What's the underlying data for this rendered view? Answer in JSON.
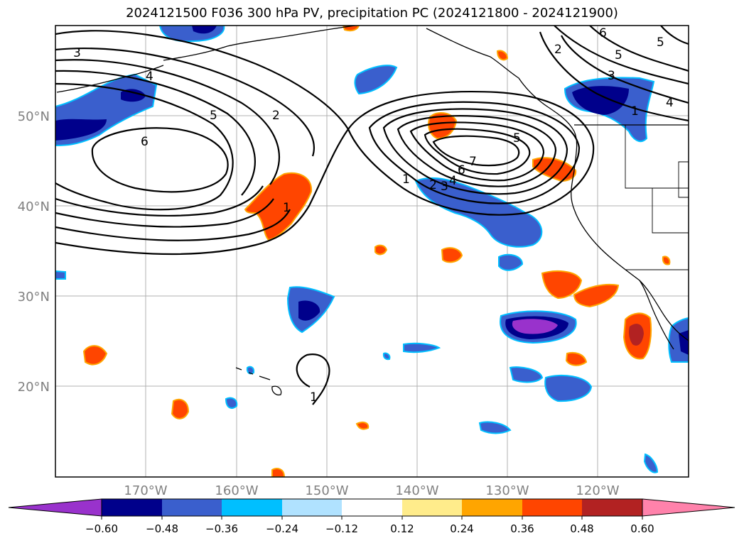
{
  "title": "2024121500 F036 300 hPa PV, precipitation PC (2024121800 - 2024121900)",
  "map": {
    "lat_labels": [
      "50°N",
      "40°N",
      "30°N",
      "20°N"
    ],
    "lon_labels": [
      "170°W",
      "160°W",
      "150°W",
      "140°W",
      "130°W",
      "120°W"
    ],
    "gridline_color": "#b0b0b0",
    "land_outline_color": "#000000"
  },
  "contours": {
    "color": "#000000",
    "labels": [
      "3",
      "4",
      "5",
      "6",
      "2",
      "1",
      "1",
      "2",
      "3",
      "4",
      "5",
      "6",
      "7",
      "5",
      "1",
      "2",
      "3",
      "4",
      "5",
      "6",
      "1"
    ]
  },
  "colorbar": {
    "colors": [
      "#9932cc",
      "#00008b",
      "#3a5fcd",
      "#00bfff",
      "#b0e2ff",
      "#ffffff",
      "#ffec8b",
      "#ffa500",
      "#ff4500",
      "#b22222",
      "#ff82ab"
    ],
    "ticks": [
      "−0.60",
      "−0.48",
      "−0.36",
      "−0.24",
      "−0.12",
      "0.12",
      "0.24",
      "0.36",
      "0.48",
      "0.60"
    ]
  }
}
